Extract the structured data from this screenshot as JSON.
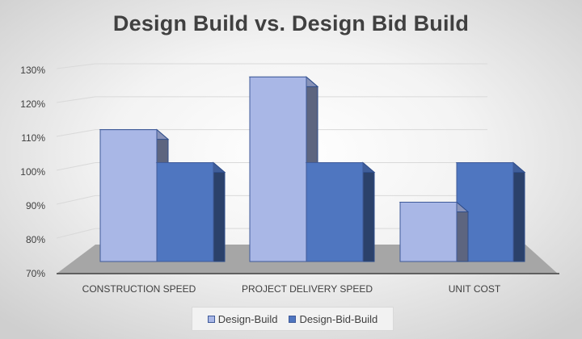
{
  "chart_data": {
    "type": "bar",
    "title": "Design Build vs. Design Bid Build",
    "categories": [
      "CONSTRUCTION SPEED",
      "PROJECT DELIVERY SPEED",
      "UNIT COST"
    ],
    "series": [
      {
        "name": "Design-Build",
        "values": [
          110,
          126,
          88
        ],
        "color": "#a9b7e6"
      },
      {
        "name": "Design-Bid-Build",
        "values": [
          100,
          100,
          100
        ],
        "color": "#4f76c0"
      }
    ],
    "ylim": [
      70,
      130
    ],
    "yticks": [
      "70%",
      "80%",
      "90%",
      "100%",
      "110%",
      "120%",
      "130%"
    ],
    "grid": true,
    "legend_position": "bottom",
    "xlabel": "",
    "ylabel": ""
  }
}
